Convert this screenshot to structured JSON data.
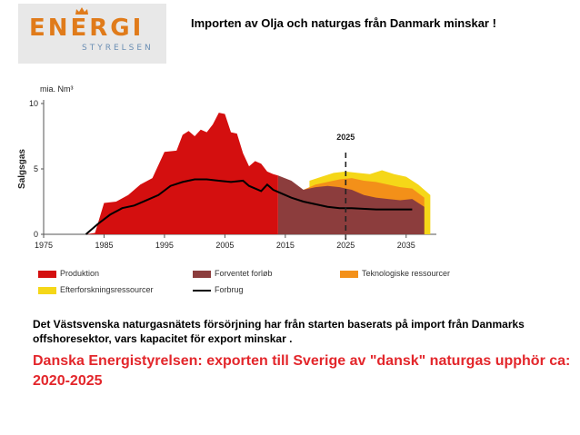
{
  "logo": {
    "main": "ENERGI",
    "sub": "STYRELSEN"
  },
  "page_title": "Importen av Olja och naturgas från Danmark minskar !",
  "note": "Det Västsvenska naturgasnätets försörjning har  från starten  baserats på import från Danmarks offshoresektor, vars kapacitet för export minskar .",
  "headline": "Danska Energistyrelsen:   exporten till Sverige  av  \"dansk\" naturgas upphör  ca: 2020-2025",
  "chart_data": {
    "type": "area",
    "unit_label": "mia. Nm³",
    "ylabel": "Salgsgas",
    "xlim": [
      1975,
      2040
    ],
    "ylim": [
      0,
      10
    ],
    "x_ticks": [
      "1975",
      "1985",
      "1995",
      "2005",
      "2015",
      "2025",
      "2035"
    ],
    "y_ticks": [
      "0",
      "5",
      "10"
    ],
    "marker": {
      "x": 2025,
      "label": "2025"
    },
    "legend": {
      "items": [
        {
          "name": "Produktion",
          "color": "#d40f0f",
          "kind": "area"
        },
        {
          "name": "Forventet forløb",
          "color": "#8c3d3d",
          "kind": "area"
        },
        {
          "name": "Teknologiske ressourcer",
          "color": "#f39019",
          "kind": "area"
        },
        {
          "name": "Efterforskningsressourcer",
          "color": "#f5d718",
          "kind": "area"
        },
        {
          "name": "Forbrug",
          "color": "#000000",
          "kind": "line"
        }
      ]
    },
    "series": [
      {
        "name": "Produktion",
        "color": "#d40f0f",
        "x": [
          1975,
          1982,
          1983.5,
          1985,
          1987,
          1989,
          1991,
          1993,
          1995,
          1997,
          1998,
          1999,
          2000,
          2001,
          2002,
          2003,
          2004,
          2005,
          2006,
          2007,
          2008,
          2009,
          2010,
          2011,
          2012,
          2013,
          2013.8
        ],
        "values": [
          0,
          0,
          0.1,
          2.4,
          2.5,
          3.0,
          3.8,
          4.3,
          6.3,
          6.4,
          7.6,
          7.9,
          7.5,
          8.0,
          7.8,
          8.4,
          9.3,
          9.2,
          7.8,
          7.7,
          6.2,
          5.2,
          5.6,
          5.4,
          4.8,
          4.6,
          4.5
        ]
      },
      {
        "name": "Forventet forløb",
        "color": "#8c3d3d",
        "x": [
          2013.8,
          2016,
          2018,
          2020,
          2022,
          2024,
          2026,
          2028,
          2030,
          2032,
          2034,
          2036,
          2038
        ],
        "values": [
          4.5,
          4.1,
          3.4,
          3.6,
          3.7,
          3.6,
          3.4,
          3.0,
          2.8,
          2.7,
          2.6,
          2.7,
          2.1
        ]
      },
      {
        "name": "Teknologiske ressourcer",
        "color": "#f39019",
        "x": [
          2018,
          2020,
          2022,
          2024,
          2026,
          2028,
          2030,
          2032,
          2034,
          2036,
          2038
        ],
        "values": [
          3.4,
          3.8,
          4.0,
          4.2,
          4.3,
          4.1,
          4.0,
          3.8,
          3.6,
          3.5,
          2.8
        ]
      },
      {
        "name": "Efterforskningsressourcer",
        "color": "#f5d718",
        "x": [
          2019,
          2021,
          2023,
          2025,
          2027,
          2029,
          2031,
          2033,
          2035,
          2037,
          2039
        ],
        "values": [
          4.1,
          4.4,
          4.7,
          4.8,
          4.7,
          4.6,
          4.9,
          4.6,
          4.4,
          3.8,
          3.0
        ]
      },
      {
        "name": "Forbrug",
        "color": "#000000",
        "kind": "line",
        "x": [
          1982,
          1984,
          1986,
          1988,
          1990,
          1992,
          1994,
          1996,
          1998,
          2000,
          2002,
          2004,
          2006,
          2008,
          2009,
          2010,
          2011,
          2012,
          2013,
          2014,
          2016,
          2018,
          2020,
          2022,
          2024,
          2026,
          2030,
          2034,
          2036
        ],
        "values": [
          0,
          0.8,
          1.5,
          2.0,
          2.2,
          2.6,
          3.0,
          3.7,
          4.0,
          4.2,
          4.2,
          4.1,
          4.0,
          4.1,
          3.7,
          3.5,
          3.3,
          3.8,
          3.4,
          3.2,
          2.8,
          2.5,
          2.3,
          2.1,
          2.0,
          2.0,
          1.9,
          1.9,
          1.9
        ]
      }
    ]
  }
}
